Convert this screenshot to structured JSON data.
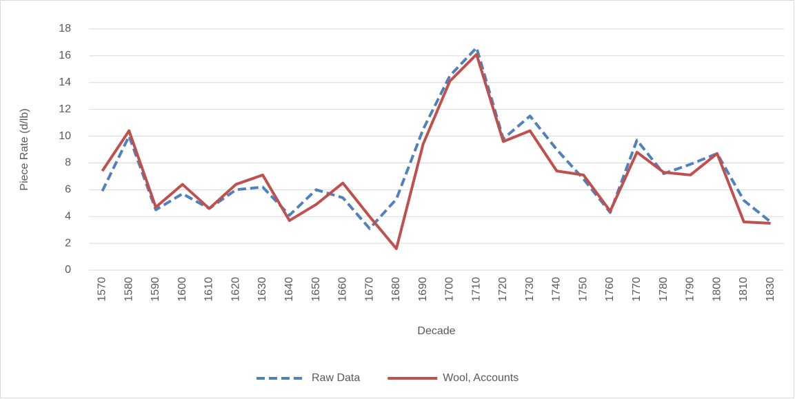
{
  "chart_data": {
    "type": "line",
    "x_label": "Decade",
    "y_label": "Piece Rate (d/lb)",
    "categories": [
      "1570",
      "1580",
      "1590",
      "1600",
      "1610",
      "1620",
      "1630",
      "1640",
      "1650",
      "1660",
      "1670",
      "1680",
      "1690",
      "1700",
      "1710",
      "1720",
      "1730",
      "1740",
      "1750",
      "1760",
      "1770",
      "1780",
      "1790",
      "1800",
      "1810",
      "1830"
    ],
    "series": [
      {
        "name": "Raw Data",
        "color": "#4f81bd",
        "style": "dashed",
        "values": [
          5.9,
          10.0,
          4.5,
          5.7,
          4.6,
          6.0,
          6.2,
          4.1,
          6.0,
          5.4,
          3.1,
          5.3,
          10.5,
          14.5,
          16.6,
          9.8,
          11.5,
          9.0,
          6.8,
          4.3,
          9.7,
          7.2,
          7.9,
          8.7,
          5.2,
          3.6
        ]
      },
      {
        "name": "Wool, Accounts",
        "color": "#c0504d",
        "style": "solid",
        "values": [
          7.4,
          10.4,
          4.7,
          6.4,
          4.6,
          6.4,
          7.1,
          3.7,
          4.9,
          6.5,
          4.0,
          1.6,
          9.4,
          14.1,
          16.1,
          9.6,
          10.4,
          7.4,
          7.1,
          4.4,
          8.8,
          7.3,
          7.1,
          8.7,
          3.6,
          3.5
        ]
      }
    ],
    "ylim": [
      0,
      18
    ],
    "yticks": [
      0,
      2,
      4,
      6,
      8,
      10,
      12,
      14,
      16,
      18
    ],
    "grid": true,
    "legend": "bottom"
  }
}
